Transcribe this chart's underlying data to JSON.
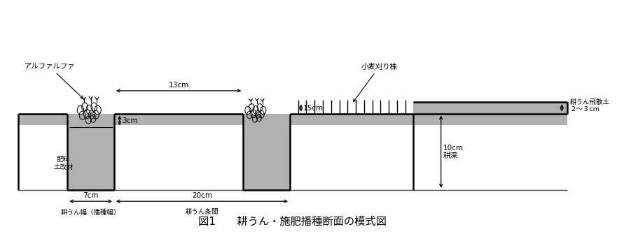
{
  "title": "図1　　耕うん・施肥播種断面の模式図",
  "title_fontsize": 11,
  "bg_color": "#ffffff",
  "soil_dark": "#b0b0b0",
  "soil_light": "#d0d0d0",
  "line_color": "#000000",
  "lw": 1.8,
  "fig_width": 8.69,
  "fig_height": 3.19,
  "labels": {
    "alfalfa": "アルファルファ",
    "fertilizer": "肥料\n土改材",
    "width_7": "7cm",
    "label_7": "耕うん幅（播種幅）",
    "width_13": "13cm",
    "width_20": "20cm",
    "label_20": "耕うん条間",
    "wheat": "小麦刈り株",
    "depth_15": "15cm",
    "scatter": "耕うん飛散土\n２～３cm",
    "depth_10": "10cm\n耕深",
    "depth_3": "3cm"
  }
}
